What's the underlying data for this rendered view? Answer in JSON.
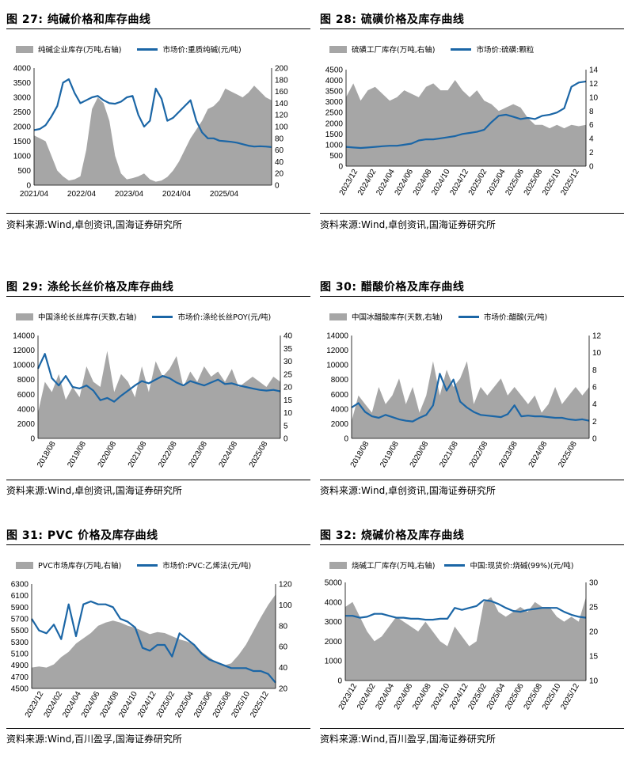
{
  "charts": [
    {
      "title": "图 27:  纯碱价格和库存曲线",
      "legend_area": "纯碱企业库存(万吨,右轴)",
      "legend_line": "市场价:重质纯碱(元/吨)",
      "source": "资料来源:Wind,卓创资讯,国海证券研究所",
      "chart_data": {
        "type": "line",
        "x_tick_labels": [
          "2021/04",
          "2022/04",
          "2023/04",
          "2024/04",
          "2025/04"
        ],
        "left_axis": {
          "min": 0,
          "max": 4000,
          "ticks": [
            "0",
            "500",
            "1000",
            "1500",
            "2000",
            "2500",
            "3000",
            "3500",
            "4000"
          ]
        },
        "right_axis": {
          "min": 0,
          "max": 200,
          "ticks": [
            "0",
            "20",
            "40",
            "60",
            "80",
            "100",
            "120",
            "140",
            "160",
            "180",
            "200"
          ]
        },
        "line_series": {
          "name": "市场价:重质纯碱(元/吨)",
          "axis": "left",
          "values": [
            1880,
            1920,
            2050,
            2350,
            2700,
            3500,
            3620,
            3150,
            2800,
            2900,
            3000,
            3050,
            2900,
            2800,
            2780,
            2850,
            3000,
            3050,
            2400,
            2000,
            2200,
            3300,
            2950,
            2200,
            2300,
            2500,
            2700,
            2900,
            2200,
            1800,
            1600,
            1600,
            1520,
            1500,
            1480,
            1450,
            1400,
            1350,
            1320,
            1330,
            1320,
            1300
          ]
        },
        "area_series": {
          "name": "纯碱企业库存(万吨,右轴)",
          "axis": "right",
          "values": [
            85,
            80,
            75,
            50,
            25,
            15,
            8,
            10,
            15,
            60,
            130,
            150,
            140,
            110,
            50,
            20,
            10,
            12,
            15,
            20,
            10,
            6,
            8,
            14,
            25,
            40,
            60,
            80,
            95,
            110,
            130,
            135,
            145,
            165,
            160,
            155,
            150,
            158,
            170,
            160,
            150,
            145
          ]
        }
      }
    },
    {
      "title": "图 28:  硫磺价格及库存曲线",
      "legend_area": "硫磺工厂库存(万吨,右轴)",
      "legend_line": "市场价:硫磺:颗粒",
      "source": "资料来源:Wind,卓创资讯,国海证券研究所",
      "chart_data": {
        "type": "line",
        "x_tick_labels": [
          "2023/12",
          "2024/02",
          "2024/04",
          "2024/06",
          "2024/08",
          "2024/10",
          "2024/12",
          "2025/02",
          "2025/04",
          "2025/06",
          "2025/08",
          "2025/10",
          "2025/12"
        ],
        "left_axis": {
          "min": 0,
          "max": 4500,
          "ticks": [
            "0",
            "500",
            "1000",
            "1500",
            "2000",
            "2500",
            "3000",
            "3500",
            "4000",
            "4500"
          ]
        },
        "right_axis": {
          "min": 0,
          "max": 14,
          "ticks": [
            "0",
            "2",
            "4",
            "6",
            "8",
            "10",
            "12",
            "14"
          ]
        },
        "line_series": {
          "name": "市场价:硫磺:颗粒",
          "axis": "left",
          "values": [
            900,
            870,
            850,
            870,
            900,
            930,
            950,
            950,
            1000,
            1050,
            1200,
            1250,
            1250,
            1300,
            1350,
            1400,
            1500,
            1550,
            1600,
            1700,
            2050,
            2350,
            2400,
            2300,
            2200,
            2250,
            2200,
            2350,
            2400,
            2500,
            2700,
            3700,
            3900,
            3950
          ]
        },
        "area_series": {
          "name": "硫磺工厂库存(万吨,右轴)",
          "axis": "right",
          "values": [
            10,
            12,
            9.5,
            11,
            11.5,
            10.5,
            9.5,
            10,
            11,
            10.5,
            10,
            11.5,
            12,
            11,
            11,
            12.5,
            11,
            10,
            11,
            9.5,
            9,
            8,
            8.5,
            9,
            8.5,
            7,
            6,
            6,
            5.5,
            6,
            5.5,
            6,
            5.8,
            6
          ]
        }
      }
    },
    {
      "title": "图 29:  涤纶长丝价格及库存曲线",
      "legend_area": "中国涤纶长丝库存(天数,右轴)",
      "legend_line": "市场价:涤纶长丝POY(元/吨)",
      "source": "资料来源:Wind,卓创资讯,国海证券研究所",
      "chart_data": {
        "type": "line",
        "x_tick_labels": [
          "2018/08",
          "2019/08",
          "2020/08",
          "2021/08",
          "2022/08",
          "2023/08",
          "2024/08",
          "2025/08"
        ],
        "left_axis": {
          "min": 0,
          "max": 14000,
          "ticks": [
            "0",
            "2000",
            "4000",
            "6000",
            "8000",
            "10000",
            "12000",
            "14000"
          ]
        },
        "right_axis": {
          "min": 0,
          "max": 40,
          "ticks": [
            "0",
            "5",
            "10",
            "15",
            "20",
            "25",
            "30",
            "35",
            "40"
          ]
        },
        "line_series": {
          "name": "市场价:涤纶长丝POY(元/吨)",
          "axis": "left",
          "values": [
            9500,
            11500,
            8200,
            7200,
            8500,
            7000,
            6800,
            7200,
            6500,
            5200,
            5500,
            5000,
            5800,
            6500,
            7200,
            7800,
            7500,
            8000,
            8500,
            8200,
            7600,
            7200,
            7800,
            7500,
            7200,
            7600,
            8000,
            7400,
            7500,
            7200,
            7000,
            6800,
            6600,
            6500,
            6600,
            6400
          ]
        },
        "area_series": {
          "name": "中国涤纶长丝库存(天数,右轴)",
          "axis": "right",
          "values": [
            10,
            22,
            18,
            25,
            15,
            20,
            16,
            28,
            22,
            20,
            34,
            18,
            25,
            22,
            16,
            28,
            18,
            30,
            24,
            27,
            32,
            20,
            26,
            22,
            28,
            24,
            26,
            22,
            27,
            20,
            22,
            24,
            22,
            20,
            24,
            22
          ]
        }
      }
    },
    {
      "title": "图 30:  醋酸价格及库存曲线",
      "legend_area": "中国冰醋酸库存(天数,右轴)",
      "legend_line": "市场价:醋酸(元/吨)",
      "source": "资料来源:Wind,卓创资讯,国海证券研究所",
      "chart_data": {
        "type": "line",
        "x_tick_labels": [
          "2018/08",
          "2019/08",
          "2020/08",
          "2021/08",
          "2022/08",
          "2023/08",
          "2024/08",
          "2025/08"
        ],
        "left_axis": {
          "min": 0,
          "max": 14000,
          "ticks": [
            "0",
            "2000",
            "4000",
            "6000",
            "8000",
            "10000",
            "12000",
            "14000"
          ]
        },
        "right_axis": {
          "min": 0,
          "max": 12,
          "ticks": [
            "0",
            "2",
            "4",
            "6",
            "8",
            "10",
            "12"
          ]
        },
        "line_series": {
          "name": "市场价:醋酸(元/吨)",
          "axis": "left",
          "values": [
            4200,
            4800,
            3600,
            3000,
            2800,
            3200,
            2900,
            2600,
            2400,
            2300,
            2800,
            3200,
            4500,
            8800,
            6500,
            8000,
            5000,
            4200,
            3600,
            3200,
            3100,
            3000,
            2900,
            3300,
            4500,
            3000,
            3100,
            3000,
            3000,
            2900,
            2800,
            2800,
            2600,
            2500,
            2600,
            2400
          ]
        },
        "area_series": {
          "name": "中国冰醋酸库存(天数,右轴)",
          "axis": "right",
          "values": [
            2,
            5,
            4,
            3,
            6,
            4,
            5,
            7,
            4,
            6,
            3,
            5,
            9,
            5,
            8,
            6,
            7,
            9,
            4,
            6,
            5,
            6,
            7,
            5,
            6,
            5,
            4,
            5,
            3,
            4,
            6,
            4,
            5,
            6,
            5,
            6
          ]
        }
      }
    },
    {
      "title": "图 31:  PVC 价格及库存曲线",
      "legend_area": "PVC市场库存(万吨,右轴)",
      "legend_line": "市场价:PVC:乙烯法(元/吨)",
      "source": "资料来源:Wind,百川盈孚,国海证券研究所",
      "chart_data": {
        "type": "line",
        "x_tick_labels": [
          "2023/12",
          "2024/02",
          "2024/04",
          "2024/06",
          "2024/08",
          "2024/10",
          "2024/12",
          "2025/02",
          "2025/04",
          "2025/06",
          "2025/08",
          "2025/10",
          "2025/12"
        ],
        "left_axis": {
          "min": 4500,
          "max": 6300,
          "ticks": [
            "4500",
            "4700",
            "4900",
            "5100",
            "5300",
            "5500",
            "5700",
            "5900",
            "6100",
            "6300"
          ]
        },
        "right_axis": {
          "min": 20,
          "max": 120,
          "ticks": [
            "20",
            "40",
            "60",
            "80",
            "100",
            "120"
          ]
        },
        "line_series": {
          "name": "市场价:PVC:乙烯法(元/吨)",
          "axis": "left",
          "values": [
            5700,
            5500,
            5450,
            5600,
            5350,
            5950,
            5400,
            5950,
            6000,
            5950,
            5950,
            5900,
            5700,
            5650,
            5550,
            5200,
            5150,
            5250,
            5250,
            5050,
            5450,
            5350,
            5250,
            5100,
            5000,
            4950,
            4900,
            4850,
            4850,
            4850,
            4800,
            4800,
            4750,
            4600
          ]
        },
        "area_series": {
          "name": "PVC市场库存(万吨,右轴)",
          "axis": "right",
          "values": [
            40,
            41,
            40,
            43,
            50,
            55,
            63,
            68,
            73,
            80,
            83,
            85,
            83,
            80,
            78,
            75,
            72,
            74,
            73,
            70,
            67,
            65,
            62,
            55,
            50,
            45,
            42,
            44,
            52,
            62,
            75,
            88,
            100,
            110
          ]
        }
      }
    },
    {
      "title": "图 32:  烧碱价格及库存曲线",
      "legend_area": "烧碱工厂库存(万吨,右轴)",
      "legend_line": "中国:现货价:烧碱(99%)(元/吨)",
      "source": "资料来源:Wind,百川盈孚,国海证券研究所",
      "chart_data": {
        "type": "line",
        "x_tick_labels": [
          "2023/12",
          "2024/02",
          "2024/04",
          "2024/06",
          "2024/08",
          "2024/10",
          "2024/12",
          "2025/02",
          "2025/04",
          "2025/06",
          "2025/08",
          "2025/10",
          "2025/12"
        ],
        "left_axis": {
          "min": 0,
          "max": 5000,
          "ticks": [
            "0",
            "1000",
            "2000",
            "3000",
            "4000",
            "5000"
          ]
        },
        "right_axis": {
          "min": 10,
          "max": 30,
          "ticks": [
            "10",
            "15",
            "20",
            "25",
            "30"
          ]
        },
        "line_series": {
          "name": "中国:现货价:烧碱(99%)(元/吨)",
          "axis": "left",
          "values": [
            3300,
            3300,
            3200,
            3250,
            3400,
            3400,
            3300,
            3200,
            3200,
            3150,
            3150,
            3100,
            3100,
            3150,
            3150,
            3700,
            3600,
            3700,
            3800,
            4100,
            4050,
            3900,
            3700,
            3550,
            3500,
            3600,
            3650,
            3700,
            3700,
            3700,
            3500,
            3350,
            3250,
            3200
          ]
        },
        "area_series": {
          "name": "烧碱工厂库存(万吨,右轴)",
          "axis": "right",
          "values": [
            25,
            26,
            23,
            20,
            18,
            19,
            21,
            23,
            22,
            21,
            20,
            22,
            20,
            18,
            17,
            21,
            19,
            17,
            18,
            26,
            27,
            24,
            23,
            24,
            25,
            24,
            26,
            25,
            25,
            23,
            22,
            23,
            22,
            27
          ]
        }
      }
    }
  ]
}
